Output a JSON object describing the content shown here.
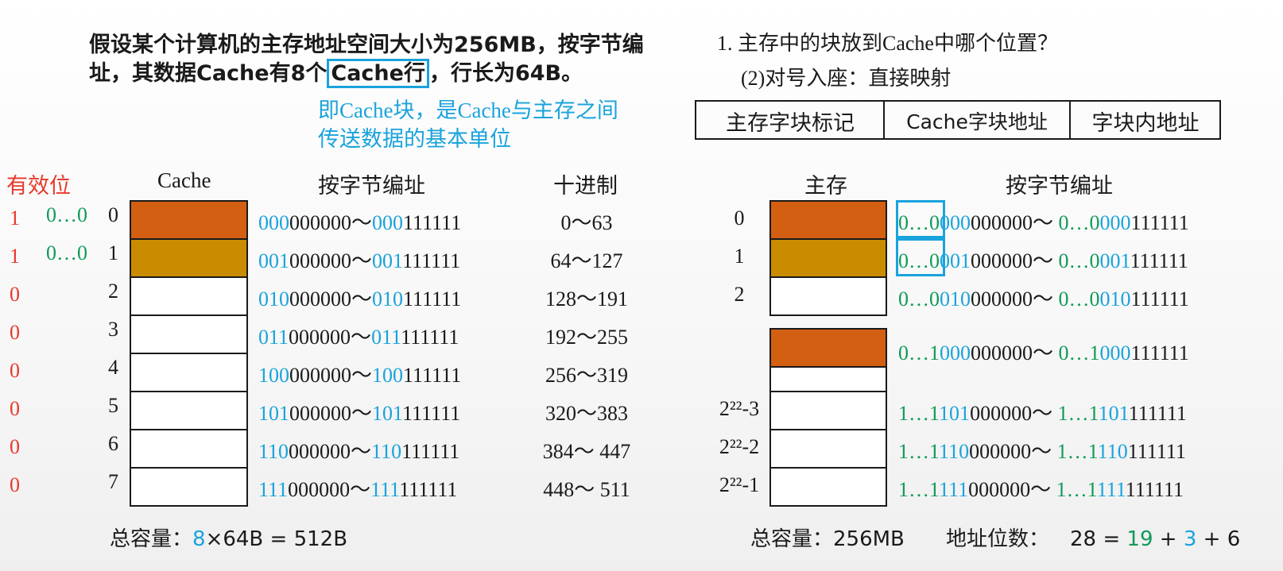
{
  "intro": {
    "line1": "假设某个计算机的主存地址空间大小为256MB，按字节编",
    "line2a": "址，其数据Cache有8个",
    "line2b": "Cache行",
    "line2c": "，行长为64B。",
    "note1": "即Cache块，是Cache与主存之间",
    "note2": "传送数据的基本单位"
  },
  "question": {
    "q1": "1. 主存中的块放到Cache中哪个位置？",
    "q2": "(2)对号入座：直接映射"
  },
  "addr_format": [
    "主存字块标记",
    "Cache字块地址",
    "字块内地址"
  ],
  "headers": {
    "valid": "有效位",
    "cache": "Cache",
    "addr": "按字节编址",
    "decimal": "十进制",
    "main": "主存",
    "main_addr": "按字节编址"
  },
  "cache_rows": [
    {
      "valid": "1",
      "tag": "0…0",
      "idx": "0",
      "p1": "000",
      "r1": "000000～",
      "p2": "000",
      "r2": "111111",
      "dec": "0～63"
    },
    {
      "valid": "1",
      "tag": "0…0",
      "idx": "1",
      "p1": "001",
      "r1": "000000～",
      "p2": "001",
      "r2": "111111",
      "dec": "64～127"
    },
    {
      "valid": "0",
      "tag": "",
      "idx": "2",
      "p1": "010",
      "r1": "000000～",
      "p2": "010",
      "r2": "111111",
      "dec": "128～191"
    },
    {
      "valid": "0",
      "tag": "",
      "idx": "3",
      "p1": "011",
      "r1": "000000～",
      "p2": "011",
      "r2": "111111",
      "dec": "192～255"
    },
    {
      "valid": "0",
      "tag": "",
      "idx": "4",
      "p1": "100",
      "r1": "000000～",
      "p2": "100",
      "r2": "111111",
      "dec": "256～319"
    },
    {
      "valid": "0",
      "tag": "",
      "idx": "5",
      "p1": "101",
      "r1": "000000～",
      "p2": "101",
      "r2": "111111",
      "dec": "320～383"
    },
    {
      "valid": "0",
      "tag": "",
      "idx": "6",
      "p1": "110",
      "r1": "000000～",
      "p2": "110",
      "r2": "111111",
      "dec": "384～ 447"
    },
    {
      "valid": "0",
      "tag": "",
      "idx": "7",
      "p1": "111",
      "r1": "000000～",
      "p2": "111",
      "r2": "111111",
      "dec": "448～ 511"
    }
  ],
  "main_rows": [
    {
      "label": "0",
      "g1": "0…0",
      "b1": "000",
      "k1": "000000～ ",
      "g2": "0…0",
      "b2": "000",
      "k2": "111111"
    },
    {
      "label": "1",
      "g1": "0…0",
      "b1": "001",
      "k1": "000000～ ",
      "g2": "0…0",
      "b2": "001",
      "k2": "111111"
    },
    {
      "label": "2",
      "g1": "0…0",
      "b1": "010",
      "k1": "000000～ ",
      "g2": "0…0",
      "b2": "010",
      "k2": "111111"
    },
    {
      "label": "",
      "g1": "0…1",
      "b1": "000",
      "k1": "000000～ ",
      "g2": "0…1",
      "b2": "000",
      "k2": "111111"
    },
    {
      "label": "2²²-3",
      "g1": "1…1",
      "b1": "101",
      "k1": "000000～ ",
      "g2": "1…1",
      "b2": "101",
      "k2": "111111"
    },
    {
      "label": "2²²-2",
      "g1": "1…1",
      "b1": "110",
      "k1": "000000～ ",
      "g2": "1…1",
      "b2": "110",
      "k2": "111111"
    },
    {
      "label": "2²²-1",
      "g1": "1…1",
      "b1": "111",
      "k1": "000000～ ",
      "g2": "1…1",
      "b2": "111",
      "k2": "111111"
    }
  ],
  "footer": {
    "cap_left_label": "总容量：",
    "cap_left_8": "8",
    "cap_left_rest": "×64B = 512B",
    "cap_right": "总容量：256MB",
    "bits_label": "地址位数：",
    "bits_28": "28 = ",
    "bits_19": "19",
    "bits_p1": " + ",
    "bits_3": "3",
    "bits_p2": " + 6"
  },
  "colors": {
    "orange": "#d35f12",
    "gold": "#c98c00",
    "blue": "#1aa3dc",
    "green": "#109a5a",
    "red": "#e8392a"
  }
}
